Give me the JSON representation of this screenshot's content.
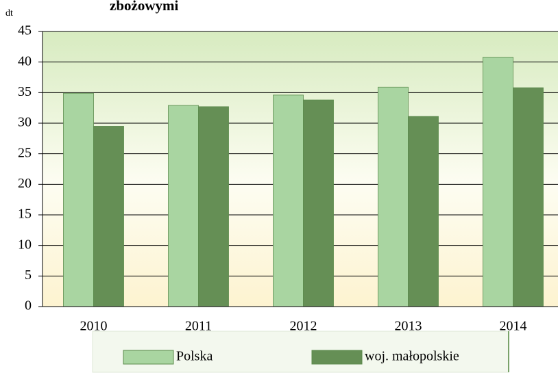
{
  "chart_data": {
    "type": "bar",
    "title": "zbożowymi",
    "y_label": "dt",
    "categories": [
      "2010",
      "2011",
      "2012",
      "2013",
      "2014"
    ],
    "series": [
      {
        "name": "Polska",
        "color": "#a9d5a1",
        "values": [
          34.9,
          32.9,
          34.6,
          35.9,
          40.8
        ]
      },
      {
        "name": "woj. małopolskie",
        "color": "#658f55",
        "values": [
          29.5,
          32.7,
          33.8,
          31.1,
          35.8
        ]
      }
    ],
    "ylim": [
      0,
      45
    ],
    "yticks": [
      0,
      5,
      10,
      15,
      20,
      25,
      30,
      35,
      40,
      45
    ],
    "grid": true
  }
}
